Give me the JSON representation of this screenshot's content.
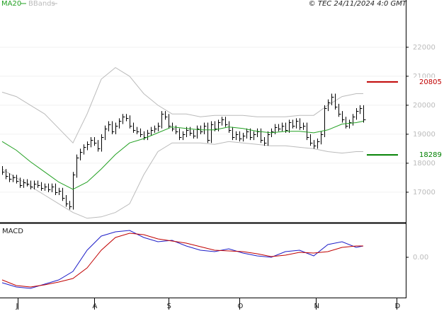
{
  "chart_data": [
    {
      "type": "ohlc",
      "legend": [
        "MA20",
        "BBands"
      ],
      "credit": "© TEC 24/11/2024 4:0 GMT",
      "x": [
        0,
        1,
        2,
        3,
        4,
        5,
        6,
        7,
        8,
        9,
        10,
        11,
        12,
        13,
        14,
        15,
        16,
        17,
        18,
        19,
        20,
        21,
        22,
        23,
        24,
        25,
        26,
        27,
        28,
        29,
        30,
        31,
        32,
        33,
        34,
        35,
        36,
        37,
        38,
        39,
        40,
        41,
        42,
        43,
        44,
        45,
        46,
        47,
        48,
        49,
        50,
        51,
        52,
        53,
        54,
        55,
        56,
        57,
        58,
        59,
        60,
        61,
        62,
        63,
        64,
        65,
        66,
        67,
        68,
        69,
        70,
        71,
        72,
        73,
        74,
        75,
        76,
        77,
        78,
        79,
        80,
        81,
        82,
        83,
        84,
        85,
        86,
        87,
        88,
        89,
        90,
        91,
        92,
        93,
        94,
        95,
        96,
        97,
        98,
        99,
        100,
        101,
        102
      ],
      "high": [
        17900,
        17800,
        17650,
        17600,
        17600,
        17500,
        17450,
        17450,
        17400,
        17400,
        17400,
        17350,
        17300,
        17300,
        17300,
        17300,
        17150,
        17150,
        16900,
        16700,
        17700,
        18300,
        18500,
        18650,
        18750,
        18900,
        18900,
        18800,
        19000,
        19300,
        19450,
        19450,
        19400,
        19550,
        19700,
        19700,
        19650,
        19400,
        19250,
        19200,
        19100,
        19150,
        19250,
        19300,
        19400,
        19800,
        19800,
        19700,
        19400,
        19300,
        19200,
        19100,
        19250,
        19250,
        19150,
        19300,
        19300,
        19400,
        19400,
        19450,
        19450,
        19500,
        19600,
        19600,
        19450,
        19250,
        19100,
        19100,
        19050,
        19200,
        19200,
        19100,
        19200,
        19200,
        18900,
        19100,
        19200,
        19350,
        19350,
        19400,
        19400,
        19500,
        19500,
        19550,
        19550,
        19400,
        19400,
        19000,
        18800,
        18850,
        19100,
        20000,
        20200,
        20400,
        20400,
        20050,
        19800,
        19600,
        19500,
        19700,
        19900,
        20000,
        20000
      ],
      "low": [
        17600,
        17450,
        17350,
        17350,
        17300,
        17150,
        17150,
        17200,
        17100,
        17100,
        17150,
        17050,
        17050,
        17000,
        17000,
        16900,
        16900,
        16700,
        16500,
        16400,
        16400,
        17500,
        18100,
        18300,
        18450,
        18550,
        18600,
        18400,
        18400,
        18800,
        19100,
        19000,
        19000,
        19200,
        19350,
        19450,
        19200,
        19050,
        19000,
        18900,
        18800,
        18800,
        18950,
        19050,
        19100,
        19200,
        19500,
        19200,
        19100,
        19000,
        18800,
        18800,
        18900,
        18950,
        18850,
        18850,
        19000,
        19000,
        18700,
        18700,
        19100,
        19100,
        19300,
        19250,
        19050,
        18800,
        18800,
        18750,
        18750,
        18850,
        18800,
        18800,
        18900,
        18700,
        18600,
        18600,
        18900,
        19000,
        19100,
        19100,
        19050,
        19050,
        19200,
        19200,
        19150,
        19150,
        18800,
        18600,
        18500,
        18500,
        18650,
        18900,
        19800,
        20000,
        19850,
        19600,
        19400,
        19200,
        19200,
        19300,
        19500,
        19700,
        19400
      ],
      "close": [
        17700,
        17550,
        17450,
        17500,
        17400,
        17250,
        17350,
        17300,
        17200,
        17300,
        17250,
        17150,
        17200,
        17100,
        17200,
        17000,
        17050,
        16800,
        16600,
        16500,
        17600,
        18200,
        18400,
        18550,
        18650,
        18800,
        18700,
        18500,
        18900,
        19200,
        19350,
        19100,
        19300,
        19450,
        19600,
        19550,
        19300,
        19150,
        19100,
        19000,
        18900,
        19050,
        19150,
        19200,
        19300,
        19700,
        19600,
        19300,
        19200,
        19100,
        18900,
        19000,
        19150,
        19050,
        18950,
        19200,
        19100,
        19300,
        18800,
        19350,
        19200,
        19400,
        19500,
        19350,
        19150,
        18900,
        19000,
        18850,
        18950,
        19100,
        18900,
        19000,
        19100,
        18800,
        18700,
        19000,
        19100,
        19250,
        19200,
        19300,
        19150,
        19400,
        19300,
        19450,
        19250,
        19300,
        18900,
        18700,
        18600,
        18750,
        19000,
        19900,
        20100,
        20300,
        19950,
        19700,
        19500,
        19300,
        19400,
        19600,
        19800,
        19900,
        19500
      ],
      "overlay_x": [
        0,
        4,
        8,
        12,
        16,
        20,
        24,
        28,
        32,
        36,
        40,
        44,
        48,
        52,
        56,
        60,
        64,
        68,
        72,
        76,
        80,
        84,
        88,
        92,
        96,
        100,
        102
      ],
      "ma": {
        "name": "MA20",
        "color": "#22a022",
        "values": [
          18750,
          18450,
          18050,
          17700,
          17350,
          17100,
          17350,
          17800,
          18300,
          18700,
          18850,
          19050,
          19250,
          19200,
          19150,
          19150,
          19250,
          19200,
          19100,
          19050,
          19100,
          19100,
          19050,
          19150,
          19350,
          19400,
          19450
        ]
      },
      "bands": {
        "name": "BBands",
        "color": "#bbbbbb",
        "upper": [
          20450,
          20300,
          20000,
          19700,
          19200,
          18700,
          19700,
          20900,
          21300,
          21000,
          20400,
          20000,
          19700,
          19700,
          19600,
          19650,
          19650,
          19650,
          19600,
          19600,
          19600,
          19650,
          19650,
          20000,
          20300,
          20400,
          20400
        ],
        "lower": [
          17800,
          17500,
          17200,
          16900,
          16600,
          16300,
          16100,
          16150,
          16300,
          16600,
          17600,
          18400,
          18700,
          18700,
          18700,
          18650,
          18750,
          18700,
          18650,
          18600,
          18600,
          18550,
          18500,
          18400,
          18350,
          18400,
          18400
        ]
      },
      "markers": [
        {
          "value": 20805,
          "label": "20805",
          "color": "#c00000"
        },
        {
          "value": 18289,
          "label": "18289",
          "color": "#008000"
        }
      ],
      "xlim": [
        -0.6,
        114
      ],
      "ylim": [
        15950,
        23630
      ],
      "yticks": [
        17000,
        18000,
        19000,
        20000,
        21000,
        22000
      ],
      "grid": true
    },
    {
      "type": "line",
      "title": "MACD",
      "x": [
        0,
        4,
        8,
        12,
        16,
        20,
        24,
        28,
        32,
        36,
        40,
        44,
        48,
        52,
        56,
        60,
        64,
        68,
        72,
        76,
        80,
        84,
        88,
        92,
        96,
        100,
        102
      ],
      "series": [
        {
          "color": "#1e1ec8",
          "values": [
            -3.6,
            -4.2,
            -4.4,
            -3.8,
            -3.2,
            -2.0,
            1.0,
            3.0,
            3.6,
            3.8,
            2.8,
            2.2,
            2.4,
            1.6,
            1.0,
            0.8,
            1.2,
            0.6,
            0.2,
            0.0,
            0.8,
            1.0,
            0.2,
            1.8,
            2.2,
            1.4,
            1.6
          ]
        },
        {
          "color": "#c00000",
          "values": [
            -3.2,
            -4.0,
            -4.2,
            -3.9,
            -3.5,
            -3.0,
            -1.5,
            1.0,
            2.8,
            3.4,
            3.2,
            2.6,
            2.3,
            2.0,
            1.5,
            1.0,
            0.9,
            0.8,
            0.5,
            0.1,
            0.3,
            0.7,
            0.6,
            0.8,
            1.4,
            1.6,
            1.6
          ]
        }
      ],
      "xlim": [
        -0.6,
        114
      ],
      "ylim": [
        -5.6,
        4.8
      ],
      "yticks": [
        {
          "value": 0,
          "label": "0.00"
        }
      ],
      "xticks": [
        {
          "value": 4.4,
          "label": "J"
        },
        {
          "value": 26,
          "label": "A"
        },
        {
          "value": 47,
          "label": "S"
        },
        {
          "value": 67,
          "label": "O"
        },
        {
          "value": 88.6,
          "label": "N"
        },
        {
          "value": 111.4,
          "label": "D"
        }
      ]
    }
  ]
}
